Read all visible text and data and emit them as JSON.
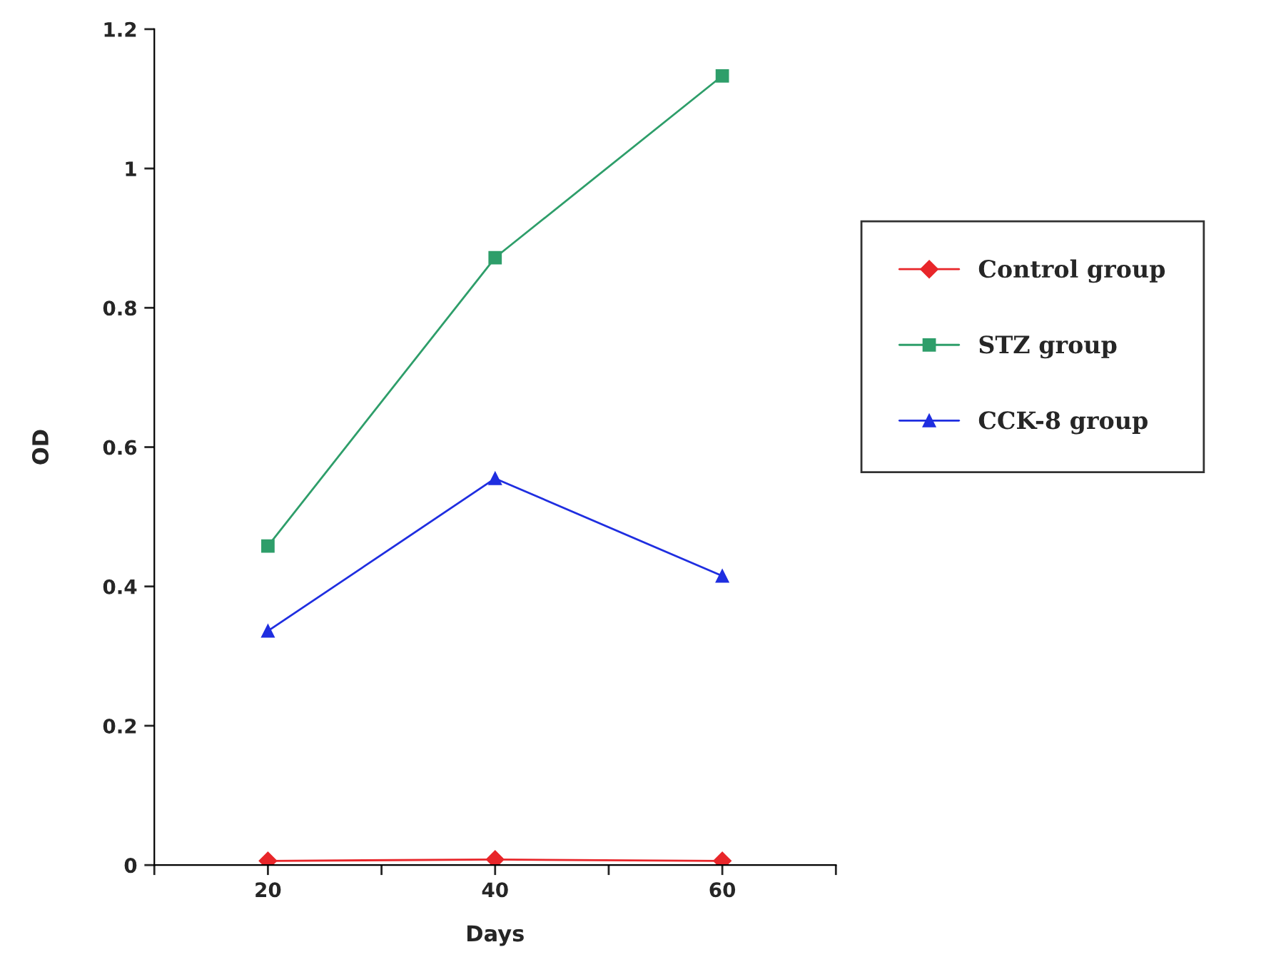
{
  "chart_data": {
    "type": "line",
    "xlabel": "Days",
    "ylabel": "OD",
    "x": [
      20,
      40,
      60
    ],
    "series": [
      {
        "name": "Control group",
        "color": "#e8262a",
        "marker": "diamond",
        "values": [
          0.006,
          0.008,
          0.006
        ]
      },
      {
        "name": "STZ group",
        "color": "#2e9e6a",
        "marker": "square",
        "values": [
          0.458,
          0.872,
          1.133
        ]
      },
      {
        "name": "CCK-8 group",
        "color": "#1f2ee0",
        "marker": "triangle",
        "values": [
          0.336,
          0.555,
          0.415
        ]
      }
    ],
    "xlim": [
      10,
      70
    ],
    "xticks": [
      {
        "value": 10,
        "label": null
      },
      20,
      {
        "value": 30,
        "label": null
      },
      40,
      {
        "value": 50,
        "label": null
      },
      60,
      {
        "value": 70,
        "label": null
      }
    ],
    "ylim": [
      0,
      1.2
    ],
    "yticks": [
      0,
      0.2,
      0.4,
      0.6,
      0.8,
      1,
      1.2
    ],
    "grid": false,
    "legend": "right",
    "line_style": "solid"
  }
}
